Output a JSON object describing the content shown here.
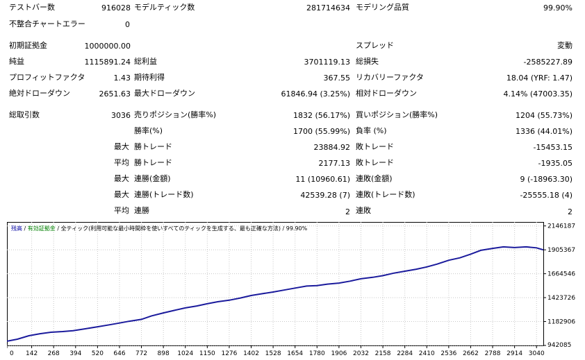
{
  "report": {
    "bars_label": "テストバー数",
    "bars_value": "916028",
    "ticks_label": "モデルティック数",
    "ticks_value": "281714634",
    "quality_label": "モデリング品質",
    "quality_value": "99.90%",
    "mismatch_label": "不整合チャートエラー",
    "mismatch_value": "0",
    "deposit_label": "初期証拠金",
    "deposit_value": "1000000.00",
    "spread_label": "スプレッド",
    "spread_value": "変動",
    "net_label": "純益",
    "net_value": "1115891.24",
    "gross_profit_label": "総利益",
    "gross_profit_value": "3701119.13",
    "gross_loss_label": "総損失",
    "gross_loss_value": "-2585227.89",
    "pf_label": "プロフィットファクタ",
    "pf_value": "1.43",
    "expected_label": "期待利得",
    "expected_value": "367.55",
    "recovery_label": "リカバリーファクタ",
    "recovery_value": "18.04 (YRF: 1.47)",
    "abs_dd_label": "絶対ドローダウン",
    "abs_dd_value": "2651.63",
    "max_dd_label": "最大ドローダウン",
    "max_dd_value": "61846.94 (3.25%)",
    "rel_dd_label": "相対ドローダウン",
    "rel_dd_value": "4.14% (47003.35)",
    "trades_label": "総取引数",
    "trades_value": "3036",
    "short_label": "売りポジション(勝率%)",
    "short_value": "1832 (56.17%)",
    "long_label": "買いポジション(勝率%)",
    "long_value": "1204 (55.73%)",
    "win_rate_label": "勝率(%)",
    "win_rate_value": "1700 (55.99%)",
    "loss_rate_label": "負率 (%)",
    "loss_rate_value": "1336 (44.01%)",
    "max_label": "最大",
    "avg_label": "平均",
    "largest_win_label": "勝トレード",
    "largest_win_value": "23884.92",
    "largest_loss_label": "敗トレード",
    "largest_loss_value": "-15453.15",
    "avg_win_label": "勝トレード",
    "avg_win_value": "2177.13",
    "avg_loss_label": "敗トレード",
    "avg_loss_value": "-1935.05",
    "max_consec_wins_money_label": "連勝(金額)",
    "max_consec_wins_money_value": "11 (10960.61)",
    "max_consec_loss_money_label": "連敗(金額)",
    "max_consec_loss_money_value": "9 (-18963.30)",
    "max_consec_wins_count_label": "連勝(トレード数)",
    "max_consec_wins_count_value": "42539.28 (7)",
    "max_consec_loss_count_label": "連敗(トレード数)",
    "max_consec_loss_count_value": "-25555.18 (4)",
    "avg_consec_wins_label": "連勝",
    "avg_consec_wins_value": "2",
    "avg_consec_loss_label": "連敗",
    "avg_consec_loss_value": "2"
  },
  "legend": {
    "balance": "残高",
    "sep1": " / ",
    "equity": "有効証拠金",
    "sep2": " / ",
    "model": "全ティック(利用可能な最小時間枠を使いすべてのティックを生成する、最も正確な方法) / 99.90%"
  },
  "colors": {
    "balance": "#0000a0",
    "equity": "#008000",
    "line": "#1a1a9c"
  },
  "chart_data": {
    "type": "line",
    "x_ticks": [
      0,
      142,
      268,
      394,
      520,
      646,
      772,
      898,
      1024,
      1150,
      1276,
      1402,
      1528,
      1654,
      1780,
      1906,
      2032,
      2158,
      2284,
      2410,
      2536,
      2662,
      2788,
      2914,
      3040
    ],
    "y_ticks": [
      "942085",
      "1182906",
      "1423726",
      "1664546",
      "1905367",
      "2146187"
    ],
    "xlim": [
      0,
      3079
    ],
    "ylim": [
      942085,
      2186000
    ],
    "series": [
      {
        "x": [
          0,
          60,
          126,
          190,
          252,
          320,
          380,
          450,
          520,
          590,
          646,
          700,
          772,
          830,
          898,
          960,
          1024,
          1090,
          1150,
          1210,
          1276,
          1340,
          1402,
          1460,
          1528,
          1590,
          1654,
          1720,
          1780,
          1840,
          1906,
          1970,
          2032,
          2100,
          2158,
          2220,
          2284,
          2350,
          2410,
          2470,
          2536,
          2600,
          2662,
          2720,
          2788,
          2850,
          2914,
          2980,
          3040,
          3079
        ],
        "y": [
          985000,
          1005000,
          1040000,
          1060000,
          1075000,
          1082000,
          1091000,
          1110000,
          1130000,
          1150000,
          1168000,
          1185000,
          1205000,
          1240000,
          1270000,
          1295000,
          1320000,
          1340000,
          1362000,
          1382000,
          1398000,
          1420000,
          1445000,
          1462000,
          1480000,
          1500000,
          1520000,
          1540000,
          1545000,
          1560000,
          1570000,
          1590000,
          1614000,
          1628000,
          1645000,
          1670000,
          1690000,
          1710000,
          1733000,
          1762000,
          1800000,
          1825000,
          1862000,
          1900000,
          1920000,
          1935000,
          1928000,
          1935000,
          1925000,
          1905000
        ]
      }
    ]
  }
}
